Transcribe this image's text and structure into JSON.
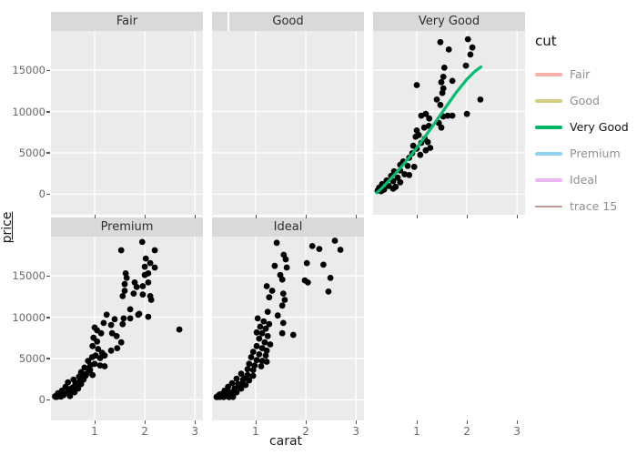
{
  "chart_data": {
    "type": "scatter",
    "xlabel": "carat",
    "ylabel": "price",
    "x_ticks": [
      1,
      2,
      3
    ],
    "y_ticks": [
      0,
      5000,
      10000,
      15000
    ],
    "x_range": [
      0.13,
      3.16
    ],
    "y_range": [
      -2500,
      19750
    ],
    "grid": true,
    "point_color": "#000000",
    "smooth_color": "#00bd6f",
    "panel_bg": "#ebebeb",
    "strip_bg": "#d9d9d9",
    "grid_color": "#ffffff",
    "legend": {
      "title": "cut",
      "position": "right",
      "entries": [
        {
          "label": "Fair",
          "color": "#f6b0a8",
          "dimmed": true,
          "thickness": 4
        },
        {
          "label": "Good",
          "color": "#d3cd82",
          "dimmed": true,
          "thickness": 4
        },
        {
          "label": "Very Good",
          "color": "#00b464",
          "dimmed": false,
          "thickness": 4
        },
        {
          "label": "Premium",
          "color": "#8ed1f0",
          "dimmed": true,
          "thickness": 4
        },
        {
          "label": "Ideal",
          "color": "#edb6f4",
          "dimmed": true,
          "thickness": 4
        },
        {
          "label": "trace 15",
          "color": "#c09a92",
          "dimmed": true,
          "thickness": 2
        }
      ]
    },
    "facets": [
      {
        "label": "Fair",
        "row": 0,
        "col": 0,
        "points": []
      },
      {
        "label": "Good",
        "row": 0,
        "col": 1,
        "points": []
      },
      {
        "label": "Very Good",
        "row": 0,
        "col": 2,
        "points": [
          [
            1.47,
            18400
          ],
          [
            1.64,
            17500
          ],
          [
            2.02,
            18750
          ],
          [
            2.11,
            17750
          ],
          [
            2.07,
            16900
          ],
          [
            1.55,
            15300
          ],
          [
            1.98,
            15550
          ],
          [
            1.53,
            14200
          ],
          [
            1.49,
            13550
          ],
          [
            1.0,
            13200
          ],
          [
            1.71,
            13700
          ],
          [
            1.53,
            12800
          ],
          [
            1.51,
            12250
          ],
          [
            1.4,
            11450
          ],
          [
            2.27,
            11450
          ],
          [
            1.47,
            10800
          ],
          [
            2.0,
            9700
          ],
          [
            1.09,
            9500
          ],
          [
            1.18,
            9700
          ],
          [
            1.25,
            9150
          ],
          [
            1.53,
            9400
          ],
          [
            1.62,
            9500
          ],
          [
            1.71,
            9500
          ],
          [
            1.44,
            8600
          ],
          [
            1.49,
            8050
          ],
          [
            1.24,
            8250
          ],
          [
            1.15,
            8050
          ],
          [
            1.0,
            7700
          ],
          [
            1.04,
            7150
          ],
          [
            0.98,
            6950
          ],
          [
            1.16,
            6700
          ],
          [
            1.22,
            6300
          ],
          [
            1.09,
            6200
          ],
          [
            0.93,
            5850
          ],
          [
            1.0,
            5500
          ],
          [
            1.18,
            5300
          ],
          [
            1.27,
            5600
          ],
          [
            0.91,
            4950
          ],
          [
            1.07,
            4750
          ],
          [
            0.85,
            4400
          ],
          [
            0.73,
            3950
          ],
          [
            0.67,
            3550
          ],
          [
            0.82,
            3400
          ],
          [
            0.95,
            3300
          ],
          [
            0.67,
            2850
          ],
          [
            0.55,
            2750
          ],
          [
            0.76,
            2400
          ],
          [
            0.85,
            2300
          ],
          [
            0.49,
            2200
          ],
          [
            0.62,
            1990
          ],
          [
            0.4,
            1650
          ],
          [
            0.53,
            1550
          ],
          [
            0.67,
            1430
          ],
          [
            0.31,
            1210
          ],
          [
            0.44,
            990
          ],
          [
            0.25,
            770
          ],
          [
            0.35,
            550
          ],
          [
            0.53,
            660
          ],
          [
            0.22,
            420
          ],
          [
            0.29,
            350
          ],
          [
            0.58,
            880
          ]
        ],
        "smooth": [
          [
            0.2,
            150
          ],
          [
            0.3,
            700
          ],
          [
            0.45,
            1650
          ],
          [
            0.6,
            2650
          ],
          [
            0.75,
            3700
          ],
          [
            0.9,
            4800
          ],
          [
            1.05,
            6000
          ],
          [
            1.2,
            7250
          ],
          [
            1.4,
            8950
          ],
          [
            1.6,
            10700
          ],
          [
            1.8,
            12400
          ],
          [
            2.0,
            13900
          ],
          [
            2.15,
            14800
          ],
          [
            2.28,
            15400
          ]
        ]
      },
      {
        "label": "Premium",
        "row": 1,
        "col": 0,
        "points": [
          [
            1.95,
            19100
          ],
          [
            1.53,
            18100
          ],
          [
            2.2,
            18100
          ],
          [
            2.02,
            17100
          ],
          [
            2.11,
            16550
          ],
          [
            2.0,
            16100
          ],
          [
            2.2,
            16000
          ],
          [
            2.0,
            15100
          ],
          [
            1.62,
            15300
          ],
          [
            1.64,
            14750
          ],
          [
            2.07,
            15300
          ],
          [
            1.6,
            14000
          ],
          [
            1.8,
            14200
          ],
          [
            1.96,
            13750
          ],
          [
            2.07,
            14200
          ],
          [
            1.84,
            13650
          ],
          [
            1.6,
            13200
          ],
          [
            1.56,
            12550
          ],
          [
            1.78,
            12850
          ],
          [
            1.96,
            12750
          ],
          [
            2.11,
            12550
          ],
          [
            2.13,
            12100
          ],
          [
            1.71,
            10950
          ],
          [
            1.89,
            10400
          ],
          [
            2.07,
            10050
          ],
          [
            1.24,
            10300
          ],
          [
            1.4,
            9750
          ],
          [
            1.58,
            9850
          ],
          [
            1.71,
            9850
          ],
          [
            1.87,
            10300
          ],
          [
            1.18,
            9300
          ],
          [
            1.33,
            9050
          ],
          [
            1.56,
            9150
          ],
          [
            1.0,
            8750
          ],
          [
            1.05,
            8400
          ],
          [
            1.13,
            8050
          ],
          [
            2.69,
            8500
          ],
          [
            1.35,
            8050
          ],
          [
            1.44,
            7700
          ],
          [
            1.53,
            6950
          ],
          [
            1.45,
            6250
          ],
          [
            1.33,
            5950
          ],
          [
            0.98,
            7500
          ],
          [
            1.05,
            7050
          ],
          [
            0.96,
            6500
          ],
          [
            1.07,
            6150
          ],
          [
            1.15,
            5700
          ],
          [
            1.02,
            5350
          ],
          [
            0.95,
            5150
          ],
          [
            1.11,
            5050
          ],
          [
            1.2,
            5350
          ],
          [
            0.87,
            4700
          ],
          [
            1.0,
            4350
          ],
          [
            1.11,
            4150
          ],
          [
            1.2,
            4050
          ],
          [
            0.8,
            3900
          ],
          [
            0.91,
            3600
          ],
          [
            0.73,
            3350
          ],
          [
            0.84,
            3150
          ],
          [
            0.96,
            3000
          ],
          [
            0.69,
            2800
          ],
          [
            0.58,
            2450
          ],
          [
            0.78,
            2450
          ],
          [
            0.47,
            2100
          ],
          [
            0.62,
            2000
          ],
          [
            0.73,
            1900
          ],
          [
            0.42,
            1550
          ],
          [
            0.53,
            1350
          ],
          [
            0.67,
            1350
          ],
          [
            0.35,
            1100
          ],
          [
            0.47,
            900
          ],
          [
            0.6,
            900
          ],
          [
            0.27,
            780
          ],
          [
            0.38,
            560
          ],
          [
            0.51,
            450
          ],
          [
            0.22,
            340
          ],
          [
            0.33,
            390
          ],
          [
            0.21,
            420
          ],
          [
            0.25,
            350
          ],
          [
            0.3,
            600
          ],
          [
            0.36,
            700
          ],
          [
            0.44,
            800
          ],
          [
            0.52,
            1050
          ],
          [
            0.57,
            1500
          ],
          [
            0.64,
            1700
          ],
          [
            0.7,
            2200
          ],
          [
            0.76,
            2700
          ],
          [
            0.82,
            2900
          ],
          [
            0.88,
            3800
          ],
          [
            0.92,
            4200
          ]
        ]
      },
      {
        "label": "Ideal",
        "row": 1,
        "col": 1,
        "points": [
          [
            1.42,
            19000
          ],
          [
            2.13,
            18600
          ],
          [
            2.27,
            18250
          ],
          [
            2.58,
            19250
          ],
          [
            2.69,
            18150
          ],
          [
            1.56,
            17550
          ],
          [
            1.6,
            17000
          ],
          [
            1.38,
            16200
          ],
          [
            1.62,
            16000
          ],
          [
            2.02,
            16550
          ],
          [
            2.35,
            16350
          ],
          [
            1.49,
            15100
          ],
          [
            1.53,
            14550
          ],
          [
            1.98,
            14450
          ],
          [
            2.04,
            14200
          ],
          [
            2.49,
            14750
          ],
          [
            1.22,
            13750
          ],
          [
            1.33,
            13200
          ],
          [
            2.45,
            13100
          ],
          [
            1.27,
            12400
          ],
          [
            1.55,
            12850
          ],
          [
            1.58,
            12100
          ],
          [
            1.53,
            11400
          ],
          [
            1.24,
            10650
          ],
          [
            1.44,
            10200
          ],
          [
            1.55,
            9300
          ],
          [
            1.04,
            9850
          ],
          [
            1.16,
            9500
          ],
          [
            1.27,
            9150
          ],
          [
            1.09,
            8850
          ],
          [
            1.2,
            8600
          ],
          [
            1.53,
            8050
          ],
          [
            1.75,
            7850
          ],
          [
            1.02,
            8150
          ],
          [
            1.13,
            8050
          ],
          [
            1.24,
            7700
          ],
          [
            1.07,
            7400
          ],
          [
            1.18,
            6950
          ],
          [
            1.29,
            6700
          ],
          [
            1.02,
            6500
          ],
          [
            1.13,
            6250
          ],
          [
            1.22,
            5950
          ],
          [
            0.95,
            5800
          ],
          [
            1.07,
            5500
          ],
          [
            1.2,
            5350
          ],
          [
            0.91,
            5150
          ],
          [
            1.02,
            4800
          ],
          [
            1.13,
            4700
          ],
          [
            1.22,
            4600
          ],
          [
            0.87,
            4350
          ],
          [
            0.98,
            4150
          ],
          [
            1.11,
            4050
          ],
          [
            0.84,
            3700
          ],
          [
            0.95,
            3600
          ],
          [
            0.71,
            3150
          ],
          [
            0.84,
            3000
          ],
          [
            0.95,
            2900
          ],
          [
            0.62,
            2550
          ],
          [
            0.75,
            2450
          ],
          [
            0.87,
            2350
          ],
          [
            0.53,
            2000
          ],
          [
            0.65,
            1900
          ],
          [
            0.8,
            1790
          ],
          [
            0.45,
            1550
          ],
          [
            0.58,
            1350
          ],
          [
            0.71,
            1350
          ],
          [
            0.38,
            1100
          ],
          [
            0.49,
            900
          ],
          [
            0.62,
            900
          ],
          [
            0.31,
            670
          ],
          [
            0.42,
            450
          ],
          [
            0.55,
            340
          ],
          [
            0.25,
            360
          ],
          [
            0.36,
            330
          ],
          [
            0.47,
            330
          ],
          [
            0.22,
            330
          ],
          [
            0.29,
            340
          ],
          [
            0.26,
            500
          ],
          [
            0.33,
            560
          ],
          [
            0.4,
            700
          ],
          [
            0.52,
            780
          ],
          [
            0.34,
            430
          ],
          [
            0.3,
            420
          ],
          [
            0.24,
            400
          ],
          [
            0.28,
            640
          ],
          [
            0.44,
            620
          ],
          [
            0.57,
            980
          ],
          [
            0.68,
            1600
          ],
          [
            0.74,
            2000
          ],
          [
            0.79,
            2600
          ]
        ]
      }
    ]
  }
}
